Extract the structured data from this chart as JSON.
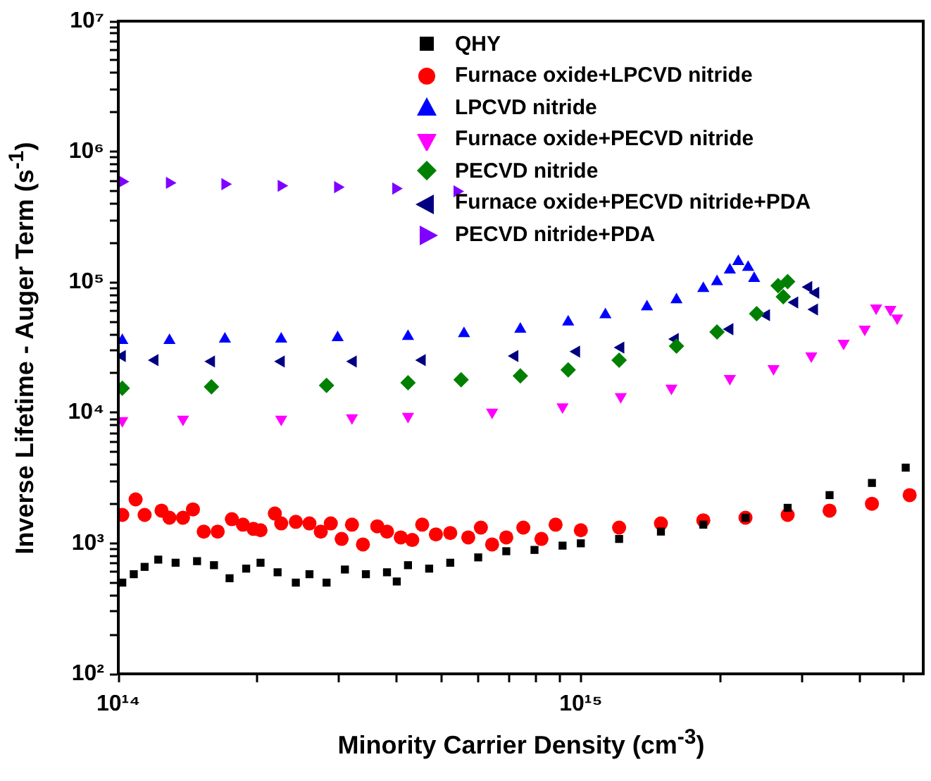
{
  "chart_data": {
    "type": "scatter",
    "xlabel": "Minority Carrier Density (cm$^{-3}$)",
    "ylabel": "Inverse Lifetime - Auger Term (s$^{-1}$)",
    "log": "xy",
    "grid": false,
    "legend": "top",
    "xlim": [
      100000000000000.0,
      5500000000000000.0
    ],
    "ylim": [
      100,
      10000000.0
    ],
    "xticks": [
      {
        "value": 100000000000000.0,
        "label": "10¹⁴"
      },
      {
        "value": 200000000000000.0,
        "label": null
      },
      {
        "value": 300000000000000.0,
        "label": null
      },
      {
        "value": 400000000000000.0,
        "label": null
      },
      {
        "value": 500000000000000.0,
        "label": null
      },
      {
        "value": 600000000000000.0,
        "label": null
      },
      {
        "value": 700000000000000.0,
        "label": null
      },
      {
        "value": 800000000000000.0,
        "label": null
      },
      {
        "value": 900000000000000.0,
        "label": null
      },
      {
        "value": 1000000000000000.0,
        "label": "10¹⁵"
      },
      {
        "value": 2000000000000000.0,
        "label": null
      },
      {
        "value": 3000000000000000.0,
        "label": null
      },
      {
        "value": 4000000000000000.0,
        "label": null
      },
      {
        "value": 5000000000000000.0,
        "label": null
      }
    ],
    "yticks": [
      {
        "value": 100,
        "label": "10²"
      },
      {
        "value": 200,
        "label": null
      },
      {
        "value": 300,
        "label": null
      },
      {
        "value": 400,
        "label": null
      },
      {
        "value": 500,
        "label": null
      },
      {
        "value": 600,
        "label": null
      },
      {
        "value": 700,
        "label": null
      },
      {
        "value": 800,
        "label": null
      },
      {
        "value": 900,
        "label": null
      },
      {
        "value": 1000,
        "label": "10³"
      },
      {
        "value": 2000,
        "label": null
      },
      {
        "value": 3000,
        "label": null
      },
      {
        "value": 4000,
        "label": null
      },
      {
        "value": 5000,
        "label": null
      },
      {
        "value": 6000,
        "label": null
      },
      {
        "value": 7000,
        "label": null
      },
      {
        "value": 8000,
        "label": null
      },
      {
        "value": 9000,
        "label": null
      },
      {
        "value": 10000,
        "label": "10⁴"
      },
      {
        "value": 20000,
        "label": null
      },
      {
        "value": 30000,
        "label": null
      },
      {
        "value": 40000,
        "label": null
      },
      {
        "value": 50000,
        "label": null
      },
      {
        "value": 60000,
        "label": null
      },
      {
        "value": 70000,
        "label": null
      },
      {
        "value": 80000,
        "label": null
      },
      {
        "value": 90000,
        "label": null
      },
      {
        "value": 100000,
        "label": "10⁵"
      },
      {
        "value": 200000,
        "label": null
      },
      {
        "value": 300000,
        "label": null
      },
      {
        "value": 400000,
        "label": null
      },
      {
        "value": 500000,
        "label": null
      },
      {
        "value": 600000,
        "label": null
      },
      {
        "value": 700000,
        "label": null
      },
      {
        "value": 800000,
        "label": null
      },
      {
        "value": 900000,
        "label": null
      },
      {
        "value": 1000000,
        "label": "10⁶"
      },
      {
        "value": 2000000,
        "label": null
      },
      {
        "value": 3000000,
        "label": null
      },
      {
        "value": 4000000,
        "label": null
      },
      {
        "value": 5000000,
        "label": null
      },
      {
        "value": 6000000,
        "label": null
      },
      {
        "value": 7000000,
        "label": null
      },
      {
        "value": 8000000,
        "label": null
      },
      {
        "value": 9000000,
        "label": null
      },
      {
        "value": 10000000,
        "label": "10⁷"
      }
    ],
    "series": [
      {
        "name": "QHY",
        "color": "#000000",
        "marker": "square",
        "x": [
          102000000000000.0,
          108000000000000.0,
          114000000000000.0,
          122000000000000.0,
          133000000000000.0,
          148000000000000.0,
          161000000000000.0,
          174000000000000.0,
          189000000000000.0,
          203000000000000.0,
          221000000000000.0,
          242000000000000.0,
          259000000000000.0,
          282000000000000.0,
          309000000000000.0,
          343000000000000.0,
          381000000000000.0,
          400000000000000.0,
          423000000000000.0,
          470000000000000.0,
          522000000000000.0,
          600000000000000.0,
          690000000000000.0,
          794000000000000.0,
          913000000000000.0,
          1000000000000000.0,
          1210000000000000.0,
          1490000000000000.0,
          1840000000000000.0,
          2270000000000000.0,
          2800000000000000.0,
          3450000000000000.0,
          4260000000000000.0,
          5040000000000000.0
        ],
        "values": [
          500,
          580,
          660,
          750,
          710,
          730,
          680,
          540,
          640,
          710,
          600,
          500,
          580,
          500,
          630,
          580,
          600,
          510,
          680,
          640,
          710,
          780,
          870,
          890,
          960,
          1000,
          1080,
          1230,
          1390,
          1570,
          1870,
          2340,
          2900,
          3800
        ]
      },
      {
        "name": "Furnace oxide+LPCVD nitride",
        "color": "#ff0000",
        "marker": "circle",
        "x": [
          102000000000000.0,
          109000000000000.0,
          114000000000000.0,
          124000000000000.0,
          129000000000000.0,
          138000000000000.0,
          145000000000000.0,
          153000000000000.0,
          164000000000000.0,
          176000000000000.0,
          186000000000000.0,
          196000000000000.0,
          203000000000000.0,
          218000000000000.0,
          225000000000000.0,
          242000000000000.0,
          259000000000000.0,
          274000000000000.0,
          288000000000000.0,
          304000000000000.0,
          320000000000000.0,
          338000000000000.0,
          363000000000000.0,
          381000000000000.0,
          408000000000000.0,
          432000000000000.0,
          454000000000000.0,
          486000000000000.0,
          522000000000000.0,
          571000000000000.0,
          608000000000000.0,
          643000000000000.0,
          690000000000000.0,
          751000000000000.0,
          822000000000000.0,
          882000000000000.0,
          1000000000000000.0,
          1210000000000000.0,
          1490000000000000.0,
          1840000000000000.0,
          2270000000000000.0,
          2800000000000000.0,
          3450000000000000.0,
          4260000000000000.0,
          5140000000000000.0
        ],
        "values": [
          1650,
          2170,
          1650,
          1780,
          1570,
          1570,
          1820,
          1230,
          1230,
          1530,
          1390,
          1290,
          1260,
          1690,
          1420,
          1460,
          1420,
          1230,
          1420,
          1080,
          1390,
          980,
          1350,
          1230,
          1110,
          1060,
          1390,
          1170,
          1200,
          1110,
          1320,
          980,
          1110,
          1320,
          1080,
          1390,
          1260,
          1320,
          1420,
          1500,
          1570,
          1650,
          1780,
          2010,
          2340
        ]
      },
      {
        "name": "LPCVD nitride",
        "color": "#0000ff",
        "marker": "triangle",
        "x": [
          102000000000000.0,
          129000000000000.0,
          170000000000000.0,
          225000000000000.0,
          298000000000000.0,
          423000000000000.0,
          559000000000000.0,
          740000000000000.0,
          939000000000000.0,
          1130000000000000.0,
          1390000000000000.0,
          1610000000000000.0,
          1840000000000000.0,
          1970000000000000.0,
          2100000000000000.0,
          2190000000000000.0,
          2300000000000000.0,
          2370000000000000.0
        ],
        "values": [
          35800,
          35800,
          36700,
          36700,
          37600,
          38500,
          40400,
          43700,
          49700,
          56400,
          64900,
          73500,
          89700,
          101000,
          124000,
          144000,
          130000,
          107000
        ]
      },
      {
        "name": "Furnace oxide+PECVD nitride",
        "color": "#ff00ff",
        "marker": "triangle-down",
        "x": [
          102000000000000.0,
          138000000000000.0,
          225000000000000.0,
          320000000000000.0,
          423000000000000.0,
          643000000000000.0,
          913000000000000.0,
          1220000000000000.0,
          1570000000000000.0,
          2100000000000000.0,
          2610000000000000.0,
          3150000000000000.0,
          3700000000000000.0,
          4110000000000000.0,
          4350000000000000.0,
          4670000000000000.0,
          4830000000000000.0
        ],
        "values": [
          8710,
          8920,
          8920,
          9140,
          9370,
          10100,
          11100,
          13300,
          15400,
          18300,
          21800,
          27200,
          34100,
          43700,
          63400,
          61800,
          53200
        ]
      },
      {
        "name": "PECVD nitride",
        "color": "#008000",
        "marker": "diamond",
        "x": [
          102000000000000.0,
          159000000000000.0,
          282000000000000.0,
          423000000000000.0,
          551000000000000.0,
          740000000000000.0,
          939000000000000.0,
          1210000000000000.0,
          1610000000000000.0,
          1970000000000000.0,
          2400000000000000.0,
          2740000000000000.0,
          2800000000000000.0,
          2670000000000000.0
        ],
        "values": [
          15400,
          15800,
          16200,
          17000,
          17900,
          19200,
          21300,
          25300,
          32400,
          41600,
          57400,
          77300,
          101000,
          94200
        ]
      },
      {
        "name": "Furnace oxide+PECVD nitride+PDA",
        "color": "#000080",
        "marker": "triangle-left",
        "x": [
          102000000000000.0,
          120000000000000.0,
          159000000000000.0,
          225000000000000.0,
          322000000000000.0,
          454000000000000.0,
          720000000000000.0,
          979000000000000.0,
          1220000000000000.0,
          1600000000000000.0,
          2100000000000000.0,
          2520000000000000.0,
          2900000000000000.0,
          3110000000000000.0,
          3220000000000000.0,
          3200000000000000.0
        ],
        "values": [
          27200,
          25300,
          24700,
          24700,
          24700,
          25300,
          27200,
          29400,
          31600,
          36700,
          43700,
          56000,
          70000,
          91800,
          83100,
          61800
        ]
      },
      {
        "name": "PECVD nitride+PDA",
        "color": "#8000ff",
        "marker": "triangle-right",
        "x": [
          102000000000000.0,
          129000000000000.0,
          170000000000000.0,
          225000000000000.0,
          298000000000000.0,
          398000000000000.0,
          540000000000000.0
        ],
        "values": [
          590000,
          577000,
          564000,
          548000,
          535000,
          522000,
          497000
        ]
      }
    ]
  }
}
